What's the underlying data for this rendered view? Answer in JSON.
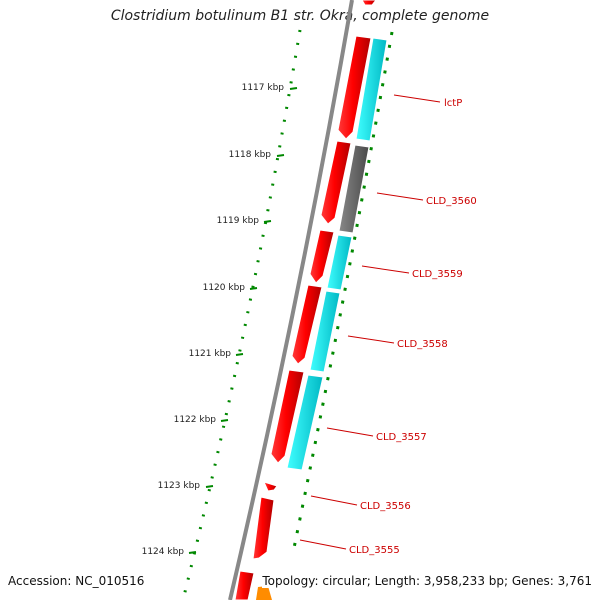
{
  "title": "Clostridium botulinum B1 str. Okra, complete genome",
  "footer": {
    "accession": "Accession: NC_010516",
    "summary": "Topology: circular; Length: 3,958,233 bp; Genes: 3,761"
  },
  "ticks": [
    "1117 kbp",
    "1118 kbp",
    "1119 kbp",
    "1120 kbp",
    "1121 kbp",
    "1122 kbp",
    "1123 kbp",
    "1124 kbp"
  ],
  "gene_labels": [
    "lctP",
    "CLD_3560",
    "CLD_3559",
    "CLD_3558",
    "CLD_3557",
    "CLD_3556",
    "CLD_3555"
  ],
  "colors": {
    "backbone": "#888888",
    "forward_gene": "#ff0000",
    "cds_cyan": "#00e5ee",
    "cds_gray": "#666666",
    "tick_green": "#008800",
    "label_red": "#cc0000",
    "other_feature": "#ff8c00"
  }
}
